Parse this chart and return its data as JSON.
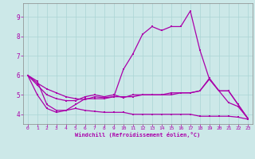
{
  "xlabel": "Windchill (Refroidissement éolien,°C)",
  "xlim": [
    -0.5,
    23.5
  ],
  "ylim": [
    3.5,
    9.7
  ],
  "yticks": [
    4,
    5,
    6,
    7,
    8,
    9
  ],
  "xticks": [
    0,
    1,
    2,
    3,
    4,
    5,
    6,
    7,
    8,
    9,
    10,
    11,
    12,
    13,
    14,
    15,
    16,
    17,
    18,
    19,
    20,
    21,
    22,
    23
  ],
  "bg_color": "#cce8e8",
  "grid_color": "#aad4d4",
  "line_color": "#aa00aa",
  "line1_y": [
    6.0,
    5.7,
    4.5,
    4.2,
    4.2,
    4.5,
    4.8,
    4.8,
    4.8,
    4.9,
    6.3,
    7.1,
    8.1,
    8.5,
    8.3,
    8.5,
    8.5,
    9.3,
    7.3,
    5.8,
    5.2,
    4.6,
    4.4,
    3.8
  ],
  "line2_y": [
    6.0,
    5.6,
    5.3,
    5.1,
    4.9,
    4.8,
    4.75,
    4.9,
    4.85,
    4.9,
    4.9,
    4.9,
    5.0,
    5.0,
    5.0,
    5.1,
    5.1,
    5.1,
    5.2,
    5.8,
    5.2,
    5.2,
    4.5,
    3.8
  ],
  "line3_y": [
    6.0,
    5.5,
    5.0,
    4.8,
    4.7,
    4.7,
    4.9,
    5.0,
    4.9,
    5.0,
    4.85,
    5.0,
    5.0,
    5.0,
    5.0,
    5.0,
    5.1,
    5.1,
    5.2,
    5.85,
    5.2,
    5.2,
    4.5,
    3.8
  ],
  "line4_y": [
    6.0,
    5.0,
    4.3,
    4.1,
    4.2,
    4.3,
    4.2,
    4.15,
    4.1,
    4.1,
    4.1,
    4.0,
    4.0,
    4.0,
    4.0,
    4.0,
    4.0,
    4.0,
    3.9,
    3.9,
    3.9,
    3.9,
    3.85,
    3.75
  ]
}
